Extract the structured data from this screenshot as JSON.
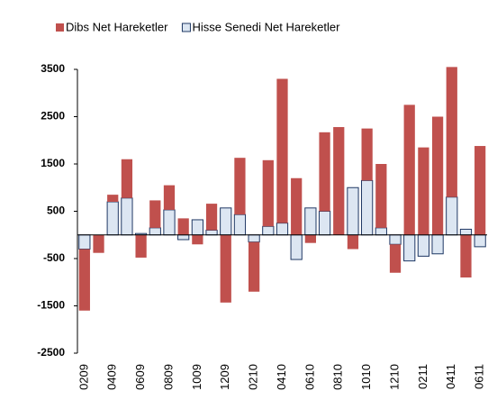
{
  "chart_data": {
    "type": "bar",
    "stacked": true,
    "categories": [
      "0209",
      null,
      "0409",
      null,
      "0609",
      null,
      "0809",
      null,
      "1009",
      null,
      "1209",
      null,
      "0210",
      null,
      "0410",
      null,
      "0610",
      null,
      "0810",
      null,
      "1010",
      null,
      "1210",
      null,
      "0211",
      null,
      "0411",
      null,
      "0611"
    ],
    "series": [
      {
        "name": "Dibs Net Hareketler",
        "color": "#c0504d",
        "values": [
          -1300,
          -380,
          150,
          820,
          -480,
          580,
          520,
          350,
          -200,
          560,
          -1430,
          1200,
          -1050,
          1400,
          3050,
          1200,
          -170,
          1670,
          2280,
          -300,
          1100,
          1350,
          -600,
          2750,
          1850,
          2500,
          2750,
          -900,
          1880
        ]
      },
      {
        "name": "Hisse Senedi Net Hareketler",
        "color": "#dce6f2",
        "stroke": "#1f3864",
        "values": [
          -300,
          0,
          700,
          780,
          30,
          150,
          530,
          -100,
          320,
          100,
          570,
          430,
          -150,
          180,
          250,
          -520,
          570,
          500,
          0,
          1000,
          1150,
          150,
          -200,
          -550,
          -450,
          -400,
          800,
          120,
          -250
        ]
      }
    ],
    "ylim": [
      -2500,
      3500
    ],
    "yticks": [
      -2500,
      -1500,
      -500,
      500,
      1500,
      2500,
      3500
    ],
    "grid": false,
    "legend": "top"
  }
}
